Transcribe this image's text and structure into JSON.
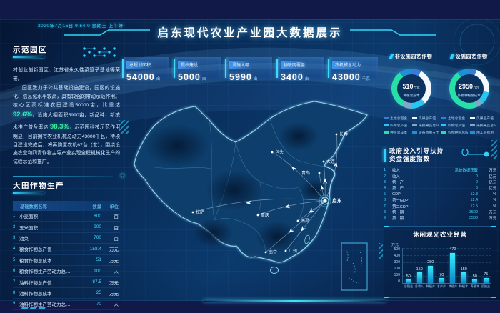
{
  "page": {
    "title": "启东现代农业产业园大数据展示",
    "datetime": "2020年7月15日 9:54:0 星期三 上午好!"
  },
  "stats": [
    {
      "label": "总规划面积",
      "value": "54000",
      "unit": "亩"
    },
    {
      "label": "提档建设",
      "value": "5000",
      "unit": "亩"
    },
    {
      "label": "设施大棚",
      "value": "5990",
      "unit": "亩"
    },
    {
      "label": "物联网覆盖",
      "value": "3400",
      "unit": "亩"
    },
    {
      "label": "农机械总动力",
      "value": "43000",
      "unit": "千瓦"
    }
  ],
  "demo_park": {
    "title": "示范园区",
    "para1": "村创业创新园区、江苏省永久性菜篮子基地等荣誉。",
    "para2_a": "园区致力于公共基础设施建设，园区的设施化、信息化水平较高，具有较强的带动示范作用。核心区高标准农田建设50000亩，比重达 ",
    "pct1": "92.6%",
    "para2_b": "，设施大棚面积5990亩，新品种、新技术推广普及率达 ",
    "pct2": "98.3%",
    "para2_c": "，示范园科技示范作用明显，目前拥有农业机械总动力43000千瓦，待项目建设完成后，将再购置农机67台（套），围绕设施农业和四青作物主导产业实现全程机械化生产的试验示范和推广。"
  },
  "field_crops": {
    "title": "大田作物生产",
    "headers": [
      "基础数据名称",
      "数量",
      "单位"
    ],
    "rows": [
      [
        "1",
        "小麦面积",
        "800",
        "亩"
      ],
      [
        "2",
        "玉米面积",
        "900",
        "亩"
      ],
      [
        "3",
        "油菜",
        "700",
        "亩"
      ],
      [
        "4",
        "粮食作物总产值",
        "158.4",
        "万元"
      ],
      [
        "5",
        "粮食作物总成本",
        "51",
        "万元"
      ],
      [
        "6",
        "粮食作物生产劳动力总…",
        "100",
        "人"
      ],
      [
        "7",
        "油料作物总产值",
        "87.5",
        "万元"
      ],
      [
        "8",
        "油料作物总成本",
        "25",
        "万元"
      ],
      [
        "9",
        "油料作物生产劳动力总…",
        "70",
        "人"
      ]
    ]
  },
  "map": {
    "main_city": "启东",
    "cities": [
      "长春",
      "包头",
      "大连",
      "青岛",
      "启东",
      "拉萨",
      "重庆",
      "南昌",
      "南宁",
      "广州"
    ]
  },
  "horticulture": {
    "non_facility": {
      "title": "非设施园艺作物",
      "center_value": "510",
      "center_unit": "万元",
      "center_label": "种植总成本",
      "chart_type": "donut",
      "segments": [
        {
          "label": "土地总租金",
          "value": 8,
          "color": "#3a7bd8"
        },
        {
          "label": "瓜果总产值",
          "value": 30,
          "color": "#f4f8ff"
        },
        {
          "label": "作物总产值",
          "value": 12,
          "color": "#28c6f0"
        },
        {
          "label": "采摘果品总产值",
          "value": 8,
          "color": "#7fa8cc"
        },
        {
          "label": "种植总成本",
          "value": 32,
          "color": "#27e0a7"
        },
        {
          "label": "设备费用支出",
          "value": 10,
          "color": "#1f8fd8"
        }
      ]
    },
    "facility": {
      "title": "设施园艺作物",
      "center_value": "2950",
      "center_unit": "万元",
      "center_label": "作物种植总成本",
      "chart_type": "donut",
      "segments": [
        {
          "label": "土地总租金",
          "value": 6,
          "color": "#3a7bd8"
        },
        {
          "label": "瓜果总产值",
          "value": 22,
          "color": "#f4f8ff"
        },
        {
          "label": "作物总产值",
          "value": 10,
          "color": "#28c6f0"
        },
        {
          "label": "采摘果品总产值",
          "value": 6,
          "color": "#7fa8cc"
        },
        {
          "label": "作物种植总成本",
          "value": 46,
          "color": "#27e0a7"
        },
        {
          "label": "用工总费用",
          "value": 10,
          "color": "#1f8fd8"
        }
      ]
    }
  },
  "government": {
    "title_line1": "政府投入引导扶持",
    "title_line2": "资金强度指数",
    "rows": [
      [
        "1",
        "收入",
        "系统数据获取",
        "万元"
      ],
      [
        "2",
        "收入",
        "0",
        "亿元"
      ],
      [
        "3",
        "第一产",
        "0",
        "亿元"
      ],
      [
        "4",
        "第二产",
        "0",
        "亿元"
      ],
      [
        "5",
        "GDP",
        "12.3",
        "%"
      ],
      [
        "6",
        "第一GDP",
        "12.4",
        "%"
      ],
      [
        "7",
        "第二GDP",
        "12.5",
        "%"
      ],
      [
        "8",
        "第一期",
        "3500",
        "万元"
      ],
      [
        "9",
        "第二期",
        "3500",
        "万元"
      ]
    ]
  },
  "leisure": {
    "title": "休闲观光农业经营",
    "chart_data": {
      "type": "bar",
      "ylabel": "万元",
      "ymax": 500,
      "yticks": [
        "500",
        "400",
        "300",
        "200",
        "100",
        "0"
      ],
      "categories": [
        "总租金",
        "总收入",
        "种植产",
        "水产产",
        "其他产",
        "种植本",
        "养殖本",
        "设施支"
      ],
      "values": [
        50,
        150,
        250,
        70,
        470,
        150,
        50,
        75
      ]
    }
  },
  "colors": {
    "accent_cyan": "#2bd4ff",
    "accent_green": "#27e0a7",
    "value_cyan": "#41d8ff",
    "bg_deep_blue": "#0b3a6d"
  }
}
